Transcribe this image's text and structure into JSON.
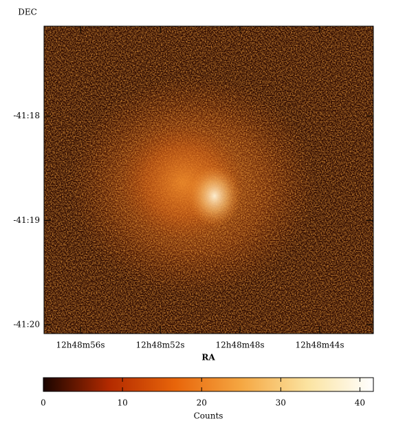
{
  "chart_data": {
    "type": "image",
    "xlabel": "RA",
    "ylabel": "DEC",
    "xlim": [
      57.83,
      41.31
    ],
    "xticks": [
      {
        "value": 56,
        "label": "12h48m56s"
      },
      {
        "value": 52,
        "label": "12h48m52s"
      },
      {
        "value": 48,
        "label": "12h48m48s"
      },
      {
        "value": 44,
        "label": "12h48m44s"
      }
    ],
    "ylim": [
      -41.33476,
      -41.28564
    ],
    "yticks": [
      {
        "value": -41.3,
        "label": "-41:18"
      },
      {
        "value": -41.31667,
        "label": "-41:19"
      },
      {
        "value": -41.33333,
        "label": "-41:20"
      }
    ],
    "colorbar": {
      "label": "Counts",
      "lim": [
        0,
        41.7
      ],
      "ticks": [
        0,
        10,
        20,
        30,
        40
      ],
      "colormap": [
        "#1a0500",
        "#b32a00",
        "#e8650a",
        "#f5a742",
        "#fbe3a0",
        "#ffffff"
      ]
    }
  }
}
